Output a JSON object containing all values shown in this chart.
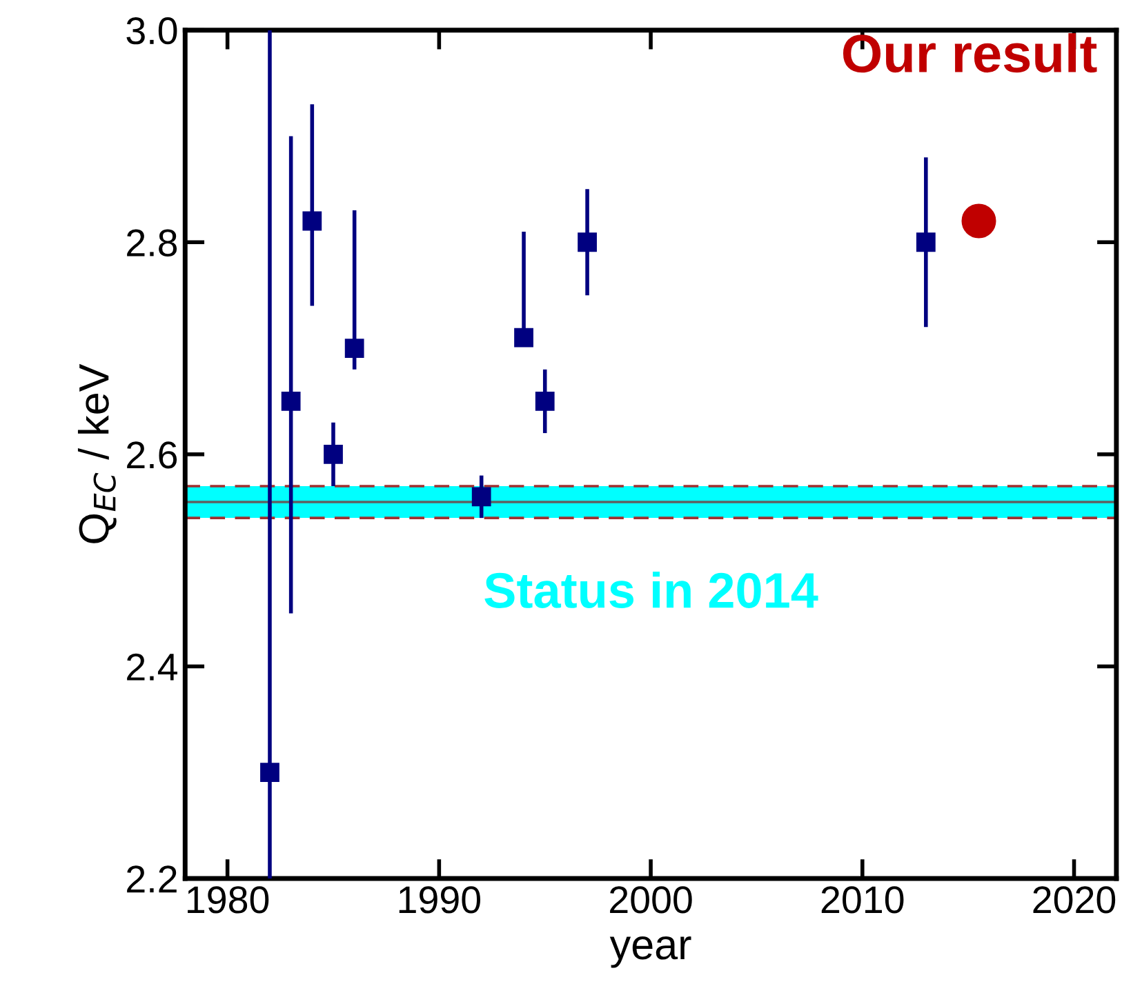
{
  "chart_data": {
    "type": "scatter",
    "xlabel": "year",
    "ylabel": "Q$_{EC}$ / keV",
    "xlim": [
      1978,
      2022
    ],
    "xticks": [
      1980,
      1990,
      2000,
      2010,
      2020
    ],
    "ylim": [
      2.2,
      3.0
    ],
    "yticks": [
      {
        "value": 2.2,
        "label": "2.2"
      },
      {
        "value": 2.4,
        "label": "2.4"
      },
      {
        "value": 2.6,
        "label": "2.6"
      },
      {
        "value": 2.8,
        "label": "2.8"
      },
      {
        "value": 3.0,
        "label": "3.0"
      }
    ],
    "series": [
      {
        "color": "#000080",
        "marker": "square",
        "x": [
          1982,
          1983,
          1984,
          1985,
          1986,
          1992,
          1994,
          1995,
          1997,
          2013
        ],
        "values": [
          2.3,
          2.65,
          2.82,
          2.6,
          2.7,
          2.56,
          2.71,
          2.65,
          2.8,
          2.8
        ],
        "errors": [
          [
            2.2,
            3.0
          ],
          [
            2.45,
            2.9
          ],
          [
            2.74,
            2.93
          ],
          0.03,
          [
            2.68,
            2.83
          ],
          0.02,
          [
            2.71,
            2.81
          ],
          0.03,
          0.05,
          0.08
        ]
      },
      {
        "name": "Our result",
        "color": "#c00000",
        "marker": "circle",
        "x": [
          2015.5
        ],
        "values": [
          2.82
        ]
      }
    ],
    "bands": [
      {
        "axis": "y",
        "from": 2.54,
        "to": 2.57,
        "label": "Status in 2014",
        "color": "#00ffff"
      }
    ],
    "ref_lines": [
      {
        "axis": "y",
        "value": 2.54,
        "color": "#a03030",
        "line_style": "dashed"
      },
      {
        "axis": "y",
        "value": 2.57,
        "color": "#a03030",
        "line_style": "dashed"
      },
      {
        "axis": "y",
        "value": 2.555,
        "color": "#606060",
        "line_style": "solid"
      }
    ],
    "grid": false,
    "legend": false
  }
}
